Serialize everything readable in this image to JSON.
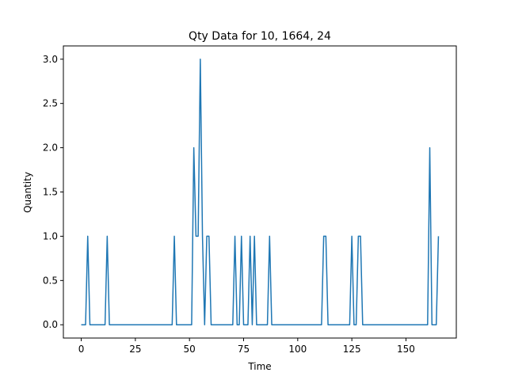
{
  "chart_data": {
    "type": "line",
    "title": "Qty Data for 10, 1664, 24",
    "xlabel": "Time",
    "ylabel": "Quantity",
    "xlim": [
      -8.25,
      173.25
    ],
    "ylim": [
      -0.15,
      3.15
    ],
    "xticks": [
      0,
      25,
      50,
      75,
      100,
      125,
      150
    ],
    "yticks": [
      0.0,
      0.5,
      1.0,
      1.5,
      2.0,
      2.5,
      3.0
    ],
    "xtick_labels": [
      "0",
      "25",
      "50",
      "75",
      "100",
      "125",
      "150"
    ],
    "ytick_labels": [
      "0.0",
      "0.5",
      "1.0",
      "1.5",
      "2.0",
      "2.5",
      "3.0"
    ],
    "grid": false,
    "line_color": "#1f77b4",
    "series": [
      {
        "x": [
          0,
          1,
          2,
          3,
          4,
          5,
          6,
          7,
          8,
          9,
          10,
          11,
          12,
          13,
          14,
          15,
          16,
          17,
          18,
          19,
          20,
          21,
          22,
          23,
          24,
          25,
          26,
          27,
          28,
          29,
          30,
          31,
          32,
          33,
          34,
          35,
          36,
          37,
          38,
          39,
          40,
          41,
          42,
          43,
          44,
          45,
          46,
          47,
          48,
          49,
          50,
          51,
          52,
          53,
          54,
          55,
          56,
          57,
          58,
          59,
          60,
          61,
          62,
          63,
          64,
          65,
          66,
          67,
          68,
          69,
          70,
          71,
          72,
          73,
          74,
          75,
          76,
          77,
          78,
          79,
          80,
          81,
          82,
          83,
          84,
          85,
          86,
          87,
          88,
          89,
          90,
          91,
          92,
          93,
          94,
          95,
          96,
          97,
          98,
          99,
          100,
          101,
          102,
          103,
          104,
          105,
          106,
          107,
          108,
          109,
          110,
          111,
          112,
          113,
          114,
          115,
          116,
          117,
          118,
          119,
          120,
          121,
          122,
          123,
          124,
          125,
          126,
          127,
          128,
          129,
          130,
          131,
          132,
          133,
          134,
          135,
          136,
          137,
          138,
          139,
          140,
          141,
          142,
          143,
          144,
          145,
          146,
          147,
          148,
          149,
          150,
          151,
          152,
          153,
          154,
          155,
          156,
          157,
          158,
          159,
          160,
          161,
          162,
          163,
          164,
          165
        ],
        "values": [
          0,
          0,
          0,
          1,
          0,
          0,
          0,
          0,
          0,
          0,
          0,
          0,
          1,
          0,
          0,
          0,
          0,
          0,
          0,
          0,
          0,
          0,
          0,
          0,
          0,
          0,
          0,
          0,
          0,
          0,
          0,
          0,
          0,
          0,
          0,
          0,
          0,
          0,
          0,
          0,
          0,
          0,
          0,
          1,
          0,
          0,
          0,
          0,
          0,
          0,
          0,
          0,
          2,
          1,
          1,
          3,
          1,
          0,
          1,
          1,
          0,
          0,
          0,
          0,
          0,
          0,
          0,
          0,
          0,
          0,
          0,
          1,
          0,
          0,
          1,
          0,
          0,
          0,
          1,
          0,
          1,
          0,
          0,
          0,
          0,
          0,
          0,
          1,
          0,
          0,
          0,
          0,
          0,
          0,
          0,
          0,
          0,
          0,
          0,
          0,
          0,
          0,
          0,
          0,
          0,
          0,
          0,
          0,
          0,
          0,
          0,
          0,
          1,
          1,
          0,
          0,
          0,
          0,
          0,
          0,
          0,
          0,
          0,
          0,
          0,
          1,
          0,
          0,
          1,
          1,
          0,
          0,
          0,
          0,
          0,
          0,
          0,
          0,
          0,
          0,
          0,
          0,
          0,
          0,
          0,
          0,
          0,
          0,
          0,
          0,
          0,
          0,
          0,
          0,
          0,
          0,
          0,
          0,
          0,
          0,
          0,
          2,
          0,
          0,
          0,
          1
        ]
      }
    ]
  }
}
